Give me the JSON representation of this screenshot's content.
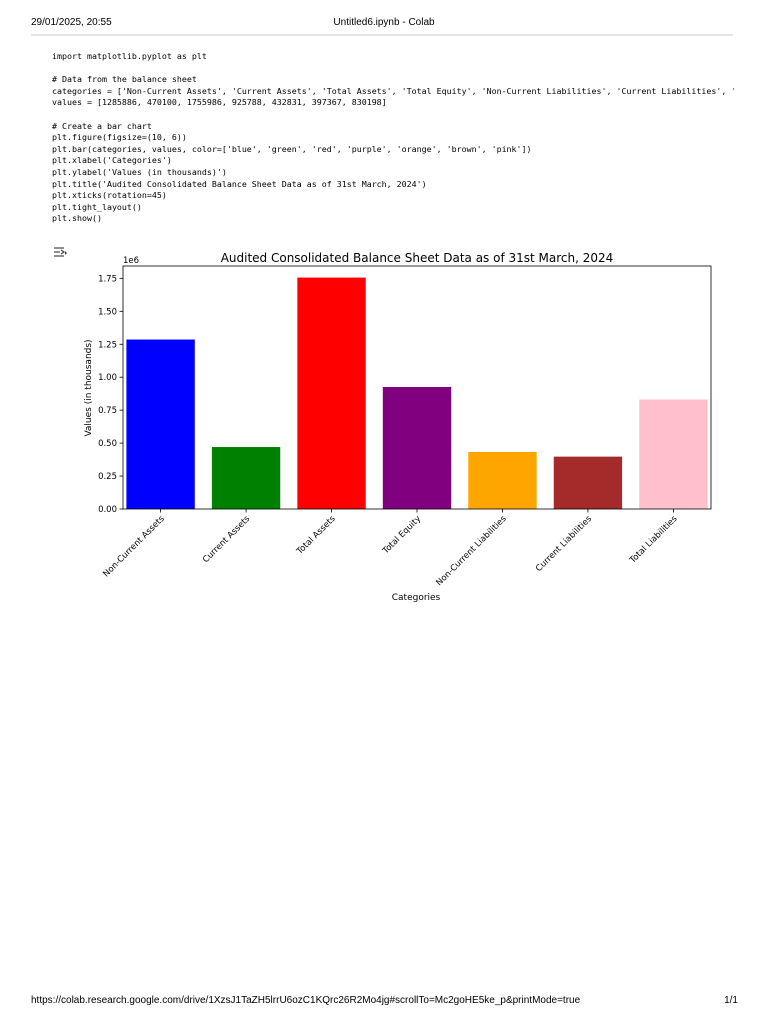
{
  "print_header": {
    "datetime": "29/01/2025, 20:55",
    "title": "Untitled6.ipynb - Colab"
  },
  "code_cell": {
    "lines": [
      "import matplotlib.pyplot as plt",
      "",
      "# Data from the balance sheet",
      "categories = ['Non-Current Assets', 'Current Assets', 'Total Assets', 'Total Equity', 'Non-Current Liabilities', 'Current Liabilities', '",
      "values = [1285886, 470100, 1755986, 925788, 432831, 397367, 830198]",
      "",
      "# Create a bar chart",
      "plt.figure(figsize=(10, 6))",
      "plt.bar(categories, values, color=['blue', 'green', 'red', 'purple', 'orange', 'brown', 'pink'])",
      "plt.xlabel('Categories')",
      "plt.ylabel('Values (in thousands)')",
      "plt.title('Audited Consolidated Balance Sheet Data as of 31st March, 2024')",
      "plt.xticks(rotation=45)",
      "plt.tight_layout()",
      "plt.show()"
    ]
  },
  "output_icon": "output-toggle-icon",
  "chart_data": {
    "type": "bar",
    "title": "Audited Consolidated Balance Sheet Data as of 31st March, 2024",
    "xlabel": "Categories",
    "ylabel": "Values (in thousands)",
    "offset_text": "1e6",
    "categories": [
      "Non-Current Assets",
      "Current Assets",
      "Total Assets",
      "Total Equity",
      "Non-Current Liabilities",
      "Current Liabilities",
      "Total Liabilities"
    ],
    "values": [
      1285886,
      470100,
      1755986,
      925788,
      432831,
      397367,
      830198
    ],
    "colors": [
      "#0000ff",
      "#008000",
      "#ff0000",
      "#800080",
      "#ffa500",
      "#a52a2a",
      "#ffc0cb"
    ],
    "ylim": [
      0,
      1843785
    ],
    "yticks": [
      0,
      250000,
      500000,
      750000,
      1000000,
      1250000,
      1500000,
      1750000
    ],
    "ytick_labels": [
      "0.00",
      "0.25",
      "0.50",
      "0.75",
      "1.00",
      "1.25",
      "1.50",
      "1.75"
    ],
    "grid": false,
    "legend": "none",
    "xtick_rotation": 45
  },
  "print_footer": {
    "url": "https://colab.research.google.com/drive/1XzsJ1TaZH5lrrU6ozC1KQrc26R2Mo4jg#scrollTo=Mc2goHE5ke_p&printMode=true",
    "page": "1/1"
  }
}
